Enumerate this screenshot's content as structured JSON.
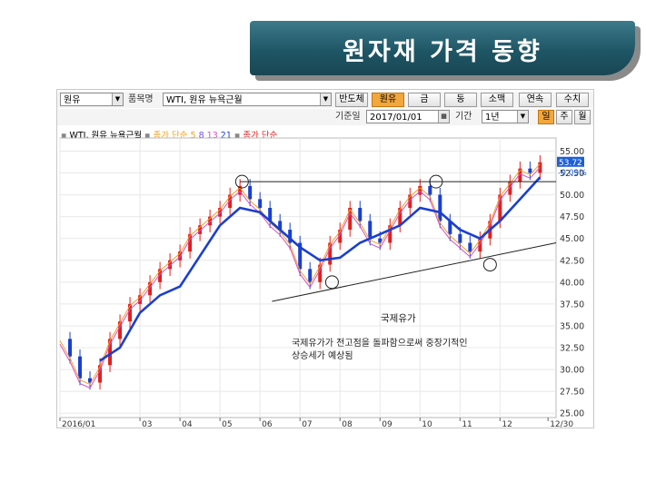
{
  "slide": {
    "title": "원자재 가격 동향"
  },
  "toolbar": {
    "category_value": "원유",
    "item_label": "품목명",
    "item_value": "WTI, 원유 뉴욕근월",
    "type_buttons": [
      "반도체",
      "원유",
      "금",
      "동",
      "소맥",
      "연속",
      "수치"
    ],
    "active_type": "원유",
    "base_date_label": "기준일",
    "base_date_value": "2017/01/01",
    "period_label": "기간",
    "period_value": "1년",
    "unit_buttons": [
      "일",
      "주",
      "월"
    ],
    "active_unit": "일"
  },
  "legend": {
    "series_name": "WTI, 원유 뉴욕근월",
    "ma_label": "종가 단순",
    "ma_periods": [
      "5",
      "8",
      "13",
      "21"
    ],
    "ma_colors": [
      "#f0a020",
      "#7a4fd8",
      "#d84fc8",
      "#1a3fcf"
    ],
    "price_label": "종가 단순",
    "price_color": "#e0201e"
  },
  "price_tag": {
    "value": "53.72",
    "change": "-0.09%"
  },
  "annotations": {
    "heading": "국제유가",
    "line1": "국제유가가 전고점을 돌파함으로써 중장기적인",
    "line2": "상승세가 예상됨"
  },
  "chart_data": {
    "type": "line",
    "title": "WTI, 원유 뉴욕근월",
    "x_tick_labels": [
      "2016/01",
      "03",
      "04",
      "05",
      "06",
      "07",
      "08",
      "09",
      "10",
      "11",
      "12",
      "12/30"
    ],
    "y_ticks": [
      25,
      27.5,
      30,
      32.5,
      35,
      37.5,
      40,
      42.5,
      45,
      47.5,
      50,
      52.5,
      55
    ],
    "ylim": [
      24.5,
      56.5
    ],
    "grid": true,
    "x_months_index": [
      0,
      1,
      2,
      3,
      4,
      5,
      6,
      7,
      8,
      9,
      10,
      11,
      12
    ],
    "series": [
      {
        "name": "종가 단순",
        "color": "#e0201e",
        "x_month": [
          0.0,
          0.25,
          0.5,
          0.75,
          1.0,
          1.25,
          1.5,
          1.75,
          2.0,
          2.25,
          2.5,
          2.75,
          3.0,
          3.25,
          3.5,
          3.75,
          4.0,
          4.25,
          4.5,
          4.75,
          5.0,
          5.25,
          5.5,
          5.75,
          6.0,
          6.25,
          6.5,
          6.75,
          7.0,
          7.25,
          7.5,
          7.75,
          8.0,
          8.25,
          8.5,
          8.75,
          9.0,
          9.25,
          9.5,
          9.75,
          10.0,
          10.25,
          10.5,
          10.75,
          11.0,
          11.25,
          11.5,
          11.75,
          12.0
        ],
        "values": [
          33.5,
          31.5,
          29.0,
          28.5,
          30.5,
          33.5,
          35.5,
          37.5,
          38.5,
          40.0,
          41.5,
          42.5,
          43.5,
          45.5,
          46.5,
          47.5,
          48.5,
          50.0,
          51.0,
          49.5,
          48.5,
          47.0,
          46.0,
          44.5,
          41.5,
          40.0,
          42.0,
          44.5,
          46.0,
          48.5,
          47.0,
          45.0,
          44.5,
          46.5,
          48.5,
          50.0,
          51.0,
          50.0,
          47.0,
          45.5,
          44.5,
          43.5,
          45.0,
          47.0,
          50.0,
          51.5,
          53.0,
          52.5,
          53.72
        ]
      },
      {
        "name": "21",
        "color": "#1a3fcf",
        "x_month": [
          1.0,
          1.5,
          2.0,
          2.5,
          3.0,
          3.5,
          4.0,
          4.5,
          5.0,
          5.5,
          6.0,
          6.5,
          7.0,
          7.5,
          8.0,
          8.5,
          9.0,
          9.5,
          10.0,
          10.5,
          11.0,
          11.5,
          12.0
        ],
        "values": [
          31.0,
          32.5,
          36.5,
          38.5,
          39.5,
          43.0,
          46.5,
          48.5,
          48.0,
          46.0,
          44.0,
          42.5,
          42.8,
          44.5,
          45.5,
          46.5,
          48.5,
          48.0,
          46.0,
          45.0,
          47.0,
          49.5,
          52.0
        ]
      }
    ],
    "resistance_line": {
      "y": 51.5
    },
    "support_line": {
      "x_month": [
        8.0,
        12.0
      ],
      "y": [
        39.0,
        44.0
      ]
    },
    "marked_points": [
      {
        "x_month": 4.55,
        "y": 51.5
      },
      {
        "x_month": 6.8,
        "y": 40.0
      },
      {
        "x_month": 9.4,
        "y": 51.5
      },
      {
        "x_month": 10.75,
        "y": 42.0
      }
    ]
  }
}
